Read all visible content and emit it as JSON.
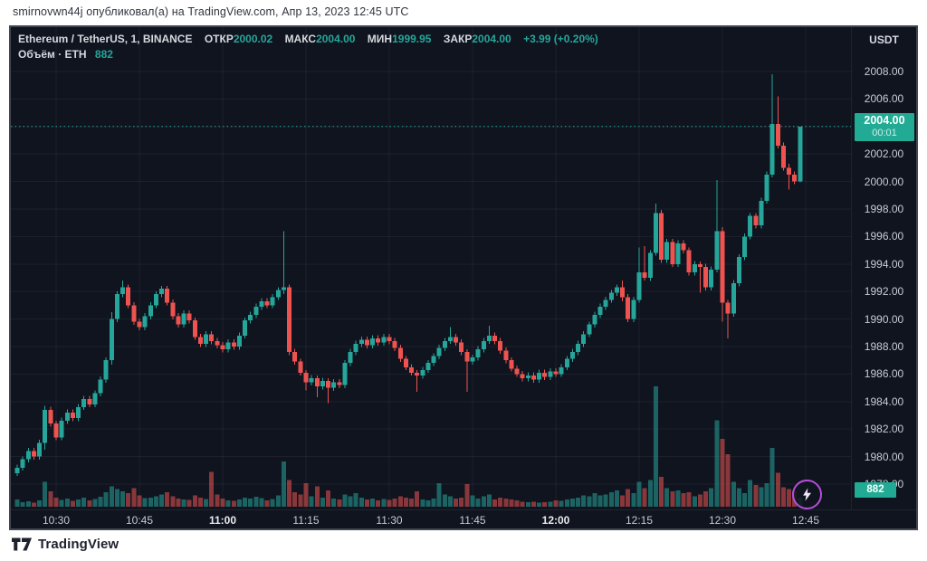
{
  "attribution": "smirnovwn44j опубликовал(а) на TradingView.com, Апр 13, 2023 12:45 UTC",
  "footer": {
    "logo_text": "TradingView"
  },
  "legend": {
    "symbol": "Ethereum / TetherUS, 1, BINANCE",
    "open_label": "ОТКР",
    "open": "2000.02",
    "high_label": "МАКС",
    "high": "2004.00",
    "low_label": "МИН",
    "low": "1999.95",
    "close_label": "ЗАКР",
    "close": "2004.00",
    "change": "+3.99 (+0.20%)",
    "volume_label": "Объём · ETH",
    "volume": "882"
  },
  "axis": {
    "currency": "USDT",
    "price_badge": {
      "price": "2004.00",
      "countdown": "00:01"
    },
    "volume_badge": "882"
  },
  "colors": {
    "up": "#26a69a",
    "down": "#ef5350",
    "up_vol": "rgba(38,166,154,0.55)",
    "down_vol": "rgba(239,83,80,0.55)",
    "grid": "rgba(240,243,250,0.06)",
    "accent": "#26a69a",
    "badge": "#22ab94"
  },
  "chart_data": {
    "type": "candlestick",
    "title": "Ethereum / TetherUS, 1, BINANCE",
    "interval_minutes": 1,
    "first_candle_time": "10:23",
    "last_candle_time": "12:44",
    "current_candle": {
      "open": 2000.02,
      "high": 2004.0,
      "low": 1999.95,
      "close": 2004.0,
      "change": "+3.99 (+0.20%)",
      "volume": 882
    },
    "price_axis": {
      "max_tick": 2008,
      "min_tick": 1978,
      "step": 2,
      "ylim": [
        1977.2,
        2008.8
      ]
    },
    "time_ticks": [
      {
        "label": "10:30",
        "bold": false
      },
      {
        "label": "10:45",
        "bold": false
      },
      {
        "label": "11:00",
        "bold": true
      },
      {
        "label": "11:15",
        "bold": false
      },
      {
        "label": "11:30",
        "bold": false
      },
      {
        "label": "11:45",
        "bold": false
      },
      {
        "label": "12:00",
        "bold": true
      },
      {
        "label": "12:15",
        "bold": false
      },
      {
        "label": "12:30",
        "bold": false
      },
      {
        "label": "12:45",
        "bold": false
      }
    ],
    "current_price_line": 2004.0,
    "first_open": 1978.8,
    "closes": [
      1979.2,
      1979.8,
      1980.4,
      1980.0,
      1981.0,
      1983.4,
      1982.4,
      1981.4,
      1982.6,
      1983.2,
      1982.8,
      1983.6,
      1984.2,
      1983.8,
      1984.6,
      1985.6,
      1987.0,
      1990.0,
      1991.8,
      1992.3,
      1991.0,
      1989.8,
      1989.4,
      1990.2,
      1991.0,
      1991.8,
      1992.2,
      1991.2,
      1990.2,
      1989.6,
      1990.4,
      1989.9,
      1988.7,
      1988.2,
      1988.9,
      1988.4,
      1988.1,
      1987.8,
      1988.3,
      1988.0,
      1988.8,
      1989.9,
      1990.3,
      1990.9,
      1991.3,
      1991.0,
      1991.6,
      1992.1,
      1992.3,
      1987.6,
      1986.9,
      1986.1,
      1985.4,
      1985.7,
      1985.1,
      1985.5,
      1985.0,
      1985.4,
      1985.2,
      1986.8,
      1987.6,
      1988.2,
      1988.5,
      1988.1,
      1988.6,
      1988.3,
      1988.7,
      1988.4,
      1987.9,
      1987.1,
      1986.5,
      1986.1,
      1985.9,
      1986.3,
      1986.8,
      1987.3,
      1987.9,
      1988.4,
      1988.7,
      1988.3,
      1987.6,
      1986.9,
      1987.2,
      1987.8,
      1988.4,
      1988.8,
      1988.4,
      1987.7,
      1987.0,
      1986.4,
      1986.0,
      1985.7,
      1985.9,
      1985.6,
      1986.1,
      1985.8,
      1986.2,
      1986.0,
      1986.5,
      1987.1,
      1987.6,
      1988.2,
      1988.9,
      1989.6,
      1990.3,
      1990.9,
      1991.4,
      1991.9,
      1992.3,
      1991.6,
      1990.0,
      1991.4,
      1993.4,
      1993.0,
      1994.8,
      1997.7,
      1994.3,
      1995.6,
      1994.0,
      1995.5,
      1995.0,
      1993.4,
      1994.0,
      1993.8,
      1992.3,
      1993.6,
      1996.4,
      1991.2,
      1990.4,
      1992.6,
      1994.5,
      1996.0,
      1997.5,
      1996.8,
      1998.6,
      2000.5,
      2004.2,
      2002.6,
      2001.0,
      2000.5,
      2000.02,
      2004.0
    ],
    "wick_overrides": {
      "5": [
        0.3,
        0.5
      ],
      "17": [
        0.5,
        0.3
      ],
      "19": [
        0.5,
        0.2
      ],
      "48": [
        4.1,
        0.3
      ],
      "52": [
        0.2,
        0.6
      ],
      "54": [
        0.2,
        0.8
      ],
      "56": [
        0.2,
        1.1
      ],
      "72": [
        0.2,
        1.2
      ],
      "78": [
        0.7,
        0.2
      ],
      "81": [
        0.2,
        2.2
      ],
      "85": [
        0.7,
        0.2
      ],
      "109": [
        0.5,
        0.3
      ],
      "112": [
        1.8,
        0.2
      ],
      "113": [
        1.9,
        0.2
      ],
      "115": [
        0.7,
        0.2
      ],
      "123": [
        0.2,
        1.9
      ],
      "126": [
        3.7,
        0.2
      ],
      "127": [
        0.3,
        1.4
      ],
      "128": [
        0.2,
        1.8
      ],
      "136": [
        3.6,
        0.2
      ],
      "137": [
        2.0,
        0.2
      ],
      "139": [
        0.3,
        1.1
      ],
      "141": [
        0.0,
        0.07
      ]
    },
    "volumes": [
      700,
      450,
      520,
      380,
      600,
      2400,
      1500,
      900,
      650,
      800,
      560,
      700,
      900,
      620,
      750,
      980,
      1400,
      2000,
      1700,
      1500,
      1300,
      1800,
      1100,
      850,
      900,
      1000,
      1200,
      1400,
      1000,
      800,
      700,
      650,
      1100,
      900,
      750,
      3400,
      1200,
      800,
      600,
      550,
      700,
      900,
      800,
      950,
      850,
      600,
      750,
      1100,
      4400,
      2600,
      1400,
      1200,
      2300,
      1000,
      2000,
      900,
      1600,
      800,
      700,
      1200,
      1000,
      1300,
      900,
      700,
      800,
      600,
      750,
      650,
      800,
      1000,
      900,
      800,
      1500,
      700,
      600,
      800,
      2300,
      1200,
      1000,
      800,
      900,
      2200,
      1100,
      800,
      1000,
      1200,
      700,
      900,
      800,
      700,
      600,
      500,
      450,
      500,
      400,
      450,
      500,
      600,
      550,
      700,
      800,
      900,
      1100,
      1000,
      1300,
      1100,
      1200,
      1400,
      1600,
      1100,
      1700,
      1300,
      2400,
      1800,
      2600,
      11700,
      2900,
      1800,
      1500,
      1600,
      1300,
      1400,
      1000,
      1200,
      1500,
      1800,
      8400,
      6600,
      5100,
      2400,
      1800,
      1300,
      2600,
      2100,
      1900,
      2300,
      5700,
      3300,
      1900,
      1700,
      1500,
      882
    ]
  }
}
